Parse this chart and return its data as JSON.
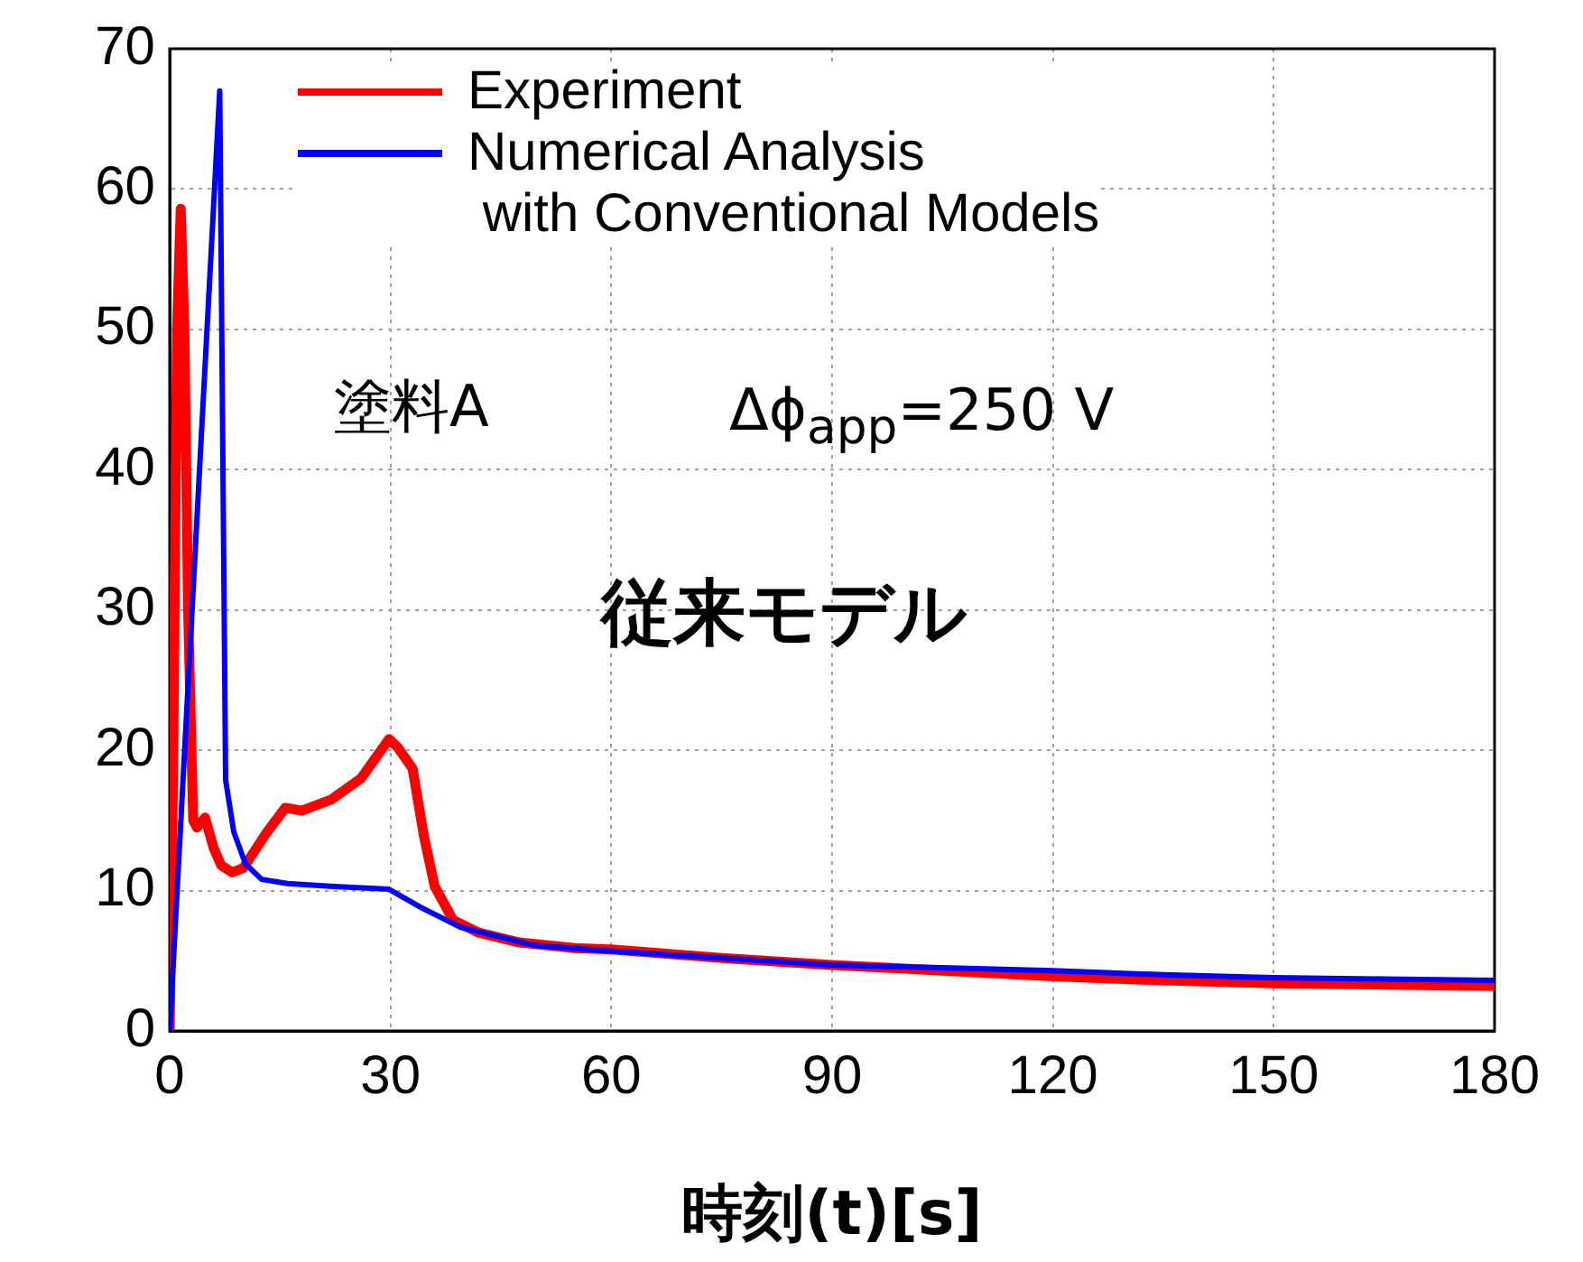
{
  "chart_data": {
    "type": "line",
    "xlabel": "時刻(t)[s]",
    "annotations": [
      "塗料A",
      "Δϕ$_{app}$=250 V",
      "従来モデル"
    ],
    "xlim": [
      0,
      180
    ],
    "ylim": [
      0,
      70
    ],
    "xticks": [
      0,
      30,
      60,
      90,
      120,
      150,
      180
    ],
    "yticks": [
      0,
      10,
      20,
      30,
      40,
      50,
      60,
      70
    ],
    "grid": true,
    "legend": "top left",
    "marker": "none",
    "line_style": "solid",
    "series": [
      {
        "name": "Experiment",
        "color": "#ff0000",
        "x": [
          0,
          0.5,
          1,
          1.5,
          2,
          2.5,
          3.2,
          3.7,
          4.8,
          6,
          7,
          8.5,
          10,
          13,
          15.7,
          18,
          22,
          26,
          29.8,
          31,
          33,
          34.5,
          36,
          38.5,
          42,
          47.5,
          55,
          60,
          75,
          90,
          105,
          120,
          135,
          150,
          165,
          180
        ],
        "values": [
          0,
          20,
          50,
          58.6,
          50,
          30,
          15,
          14.5,
          15.2,
          13,
          11.8,
          11.3,
          11.6,
          14,
          15.9,
          15.7,
          16.5,
          18,
          20.8,
          20.2,
          18.7,
          14,
          10.3,
          7.9,
          7,
          6.3,
          5.9,
          5.8,
          5.2,
          4.7,
          4.3,
          3.9,
          3.6,
          3.4,
          3.3,
          3.2
        ]
      },
      {
        "name": "Numerical Analysis\n with Conventional Models",
        "color": "#0000ff",
        "x": [
          0,
          6.8,
          7.6,
          8.7,
          10.3,
          12.5,
          16,
          22.3,
          29.8,
          34.5,
          39.5,
          49.5,
          60,
          75,
          90,
          105,
          120,
          135,
          150,
          165,
          180
        ],
        "values": [
          0,
          67,
          17.9,
          14.2,
          11.9,
          10.8,
          10.5,
          10.3,
          10.1,
          8.7,
          7.4,
          6.1,
          5.7,
          5.2,
          4.7,
          4.5,
          4.3,
          4,
          3.8,
          3.7,
          3.6
        ]
      }
    ]
  }
}
